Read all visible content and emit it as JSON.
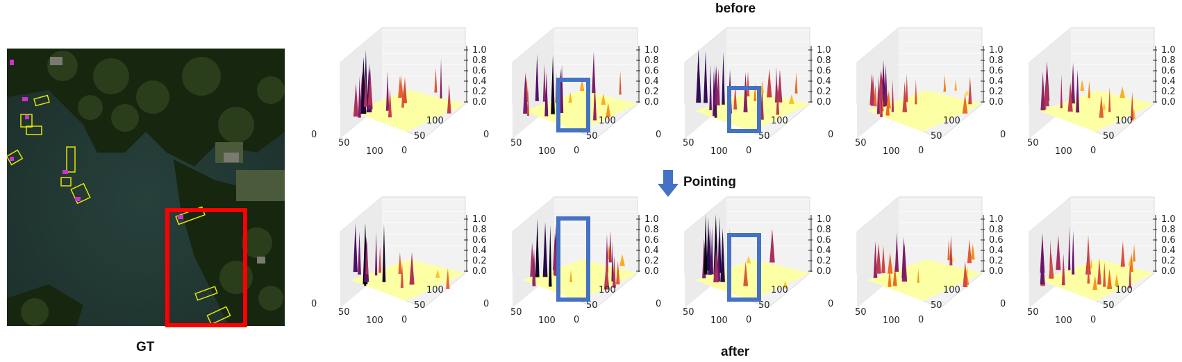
{
  "labels": {
    "top": "before",
    "bottom": "after",
    "arrow": "Pointing",
    "gt": "GT"
  },
  "axis": {
    "z_ticks": [
      "1.0",
      "0.8",
      "0.6",
      "0.4",
      "0.2",
      "0.0"
    ],
    "x_ticks": [
      "0",
      "50",
      "100"
    ],
    "y_ticks": [
      "0",
      "50",
      "100"
    ]
  },
  "colors": {
    "highlight_box": "#4472c4",
    "gt_box": "#ff0000",
    "floor": "#fcffa4",
    "arrow": "#4472c4",
    "detection_box": "#e6e600",
    "detection_label": "#cc33cc"
  },
  "panels": {
    "before": [
      {
        "highlighted": false
      },
      {
        "highlighted": true
      },
      {
        "highlighted": true
      },
      {
        "highlighted": false
      },
      {
        "highlighted": false
      }
    ],
    "after": [
      {
        "highlighted": false
      },
      {
        "highlighted": true
      },
      {
        "highlighted": true
      },
      {
        "highlighted": false
      },
      {
        "highlighted": false
      }
    ]
  }
}
